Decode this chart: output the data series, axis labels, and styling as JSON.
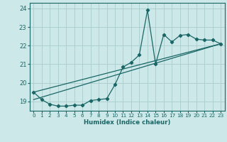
{
  "xlabel": "Humidex (Indice chaleur)",
  "bg_color": "#cce8e8",
  "grid_color": "#aacccc",
  "line_color": "#1a6666",
  "xlim": [
    -0.5,
    23.5
  ],
  "ylim": [
    18.5,
    24.3
  ],
  "yticks": [
    19,
    20,
    21,
    22,
    23,
    24
  ],
  "xticks": [
    0,
    1,
    2,
    3,
    4,
    5,
    6,
    7,
    8,
    9,
    10,
    11,
    12,
    13,
    14,
    15,
    16,
    17,
    18,
    19,
    20,
    21,
    22,
    23
  ],
  "series1_x": [
    0,
    1,
    2,
    3,
    4,
    5,
    6,
    7,
    8,
    9,
    10,
    11,
    12,
    13,
    14,
    15,
    16,
    17,
    18,
    19,
    20,
    21,
    22,
    23
  ],
  "series1_y": [
    19.5,
    19.1,
    18.85,
    18.75,
    18.75,
    18.8,
    18.8,
    19.05,
    19.1,
    19.15,
    19.9,
    20.85,
    21.1,
    21.5,
    23.9,
    21.0,
    22.6,
    22.2,
    22.55,
    22.6,
    22.35,
    22.3,
    22.3,
    22.1
  ],
  "series2_x": [
    0,
    23
  ],
  "series2_y": [
    19.1,
    22.1
  ],
  "series3_x": [
    0,
    23
  ],
  "series3_y": [
    19.5,
    22.1
  ]
}
